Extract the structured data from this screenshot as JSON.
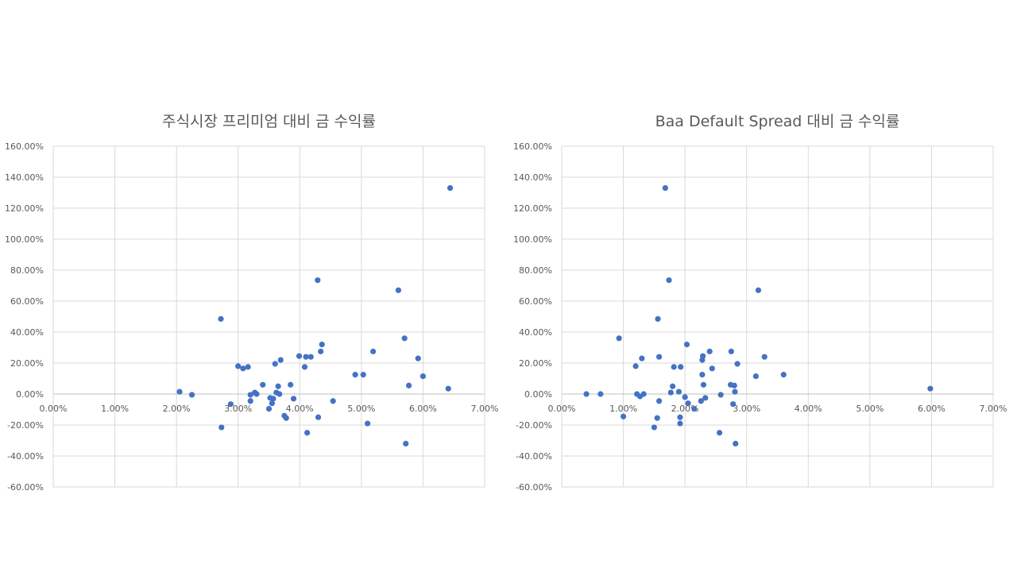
{
  "chart_data": [
    {
      "type": "scatter",
      "title": "주식시장 프리미엄 대비 금 수익률",
      "xlim": [
        0,
        0.07
      ],
      "ylim": [
        -0.6,
        1.6
      ],
      "x_ticks": [
        "0.00%",
        "1.00%",
        "2.00%",
        "3.00%",
        "4.00%",
        "5.00%",
        "6.00%",
        "7.00%"
      ],
      "y_ticks": [
        "160.00%",
        "140.00%",
        "120.00%",
        "100.00%",
        "80.00%",
        "60.00%",
        "40.00%",
        "20.00%",
        "0.00%",
        "-20.00%",
        "-40.00%",
        "-60.00%"
      ],
      "grid": true,
      "marker_color": "#4472C4",
      "points": [
        [
          0.0205,
          0.015
        ],
        [
          0.0225,
          -0.005
        ],
        [
          0.0272,
          0.485
        ],
        [
          0.0273,
          -0.215
        ],
        [
          0.0288,
          -0.065
        ],
        [
          0.03,
          0.18
        ],
        [
          0.0308,
          0.165
        ],
        [
          0.0316,
          0.175
        ],
        [
          0.032,
          -0.005
        ],
        [
          0.032,
          -0.045
        ],
        [
          0.0327,
          0.01
        ],
        [
          0.033,
          0.0
        ],
        [
          0.034,
          0.06
        ],
        [
          0.035,
          -0.095
        ],
        [
          0.0352,
          -0.025
        ],
        [
          0.0355,
          -0.06
        ],
        [
          0.0357,
          -0.03
        ],
        [
          0.036,
          0.195
        ],
        [
          0.0362,
          0.01
        ],
        [
          0.0365,
          0.05
        ],
        [
          0.0367,
          0.0
        ],
        [
          0.0369,
          0.22
        ],
        [
          0.0375,
          -0.14
        ],
        [
          0.0378,
          -0.155
        ],
        [
          0.0385,
          0.06
        ],
        [
          0.039,
          -0.03
        ],
        [
          0.0399,
          0.245
        ],
        [
          0.0408,
          0.175
        ],
        [
          0.041,
          0.24
        ],
        [
          0.0412,
          -0.25
        ],
        [
          0.0418,
          0.24
        ],
        [
          0.0429,
          0.735
        ],
        [
          0.043,
          -0.15
        ],
        [
          0.0434,
          0.275
        ],
        [
          0.0436,
          0.32
        ],
        [
          0.0454,
          -0.045
        ],
        [
          0.049,
          0.125
        ],
        [
          0.0503,
          0.125
        ],
        [
          0.051,
          -0.19
        ],
        [
          0.0519,
          0.275
        ],
        [
          0.056,
          0.67
        ],
        [
          0.057,
          0.36
        ],
        [
          0.0572,
          -0.32
        ],
        [
          0.0577,
          0.055
        ],
        [
          0.0592,
          0.23
        ],
        [
          0.06,
          0.115
        ],
        [
          0.0641,
          0.035
        ],
        [
          0.0644,
          1.33
        ]
      ]
    },
    {
      "type": "scatter",
      "title": "Baa Default Spread 대비 금 수익률",
      "xlim": [
        0,
        0.07
      ],
      "ylim": [
        -0.6,
        1.6
      ],
      "x_ticks": [
        "0.00%",
        "1.00%",
        "2.00%",
        "3.00%",
        "4.00%",
        "5.00%",
        "6.00%",
        "7.00%"
      ],
      "y_ticks": [
        "160.00%",
        "140.00%",
        "120.00%",
        "100.00%",
        "80.00%",
        "60.00%",
        "40.00%",
        "20.00%",
        "0.00%",
        "-20.00%",
        "-40.00%",
        "-60.00%"
      ],
      "grid": true,
      "marker_color": "#4472C4",
      "points": [
        [
          0.004,
          0.0
        ],
        [
          0.0063,
          0.0
        ],
        [
          0.0093,
          0.36
        ],
        [
          0.01,
          -0.145
        ],
        [
          0.012,
          0.18
        ],
        [
          0.0122,
          0.0
        ],
        [
          0.0127,
          -0.015
        ],
        [
          0.013,
          0.23
        ],
        [
          0.0133,
          0.0
        ],
        [
          0.015,
          -0.215
        ],
        [
          0.0155,
          -0.155
        ],
        [
          0.0156,
          0.485
        ],
        [
          0.0158,
          0.24
        ],
        [
          0.0158,
          -0.045
        ],
        [
          0.0168,
          1.33
        ],
        [
          0.0174,
          0.735
        ],
        [
          0.0177,
          0.01
        ],
        [
          0.018,
          0.05
        ],
        [
          0.0182,
          0.175
        ],
        [
          0.019,
          0.015
        ],
        [
          0.0192,
          -0.19
        ],
        [
          0.0192,
          -0.15
        ],
        [
          0.0193,
          0.175
        ],
        [
          0.02,
          -0.02
        ],
        [
          0.0203,
          0.32
        ],
        [
          0.0205,
          -0.06
        ],
        [
          0.0215,
          -0.095
        ],
        [
          0.0226,
          -0.045
        ],
        [
          0.0228,
          0.125
        ],
        [
          0.0228,
          0.22
        ],
        [
          0.0229,
          0.245
        ],
        [
          0.023,
          0.06
        ],
        [
          0.0233,
          -0.025
        ],
        [
          0.024,
          0.275
        ],
        [
          0.0244,
          0.165
        ],
        [
          0.0256,
          -0.25
        ],
        [
          0.0258,
          -0.005
        ],
        [
          0.0274,
          0.06
        ],
        [
          0.0275,
          0.275
        ],
        [
          0.0278,
          -0.065
        ],
        [
          0.028,
          0.055
        ],
        [
          0.0281,
          0.015
        ],
        [
          0.0282,
          -0.32
        ],
        [
          0.0285,
          0.195
        ],
        [
          0.0315,
          0.115
        ],
        [
          0.0319,
          0.67
        ],
        [
          0.0329,
          0.24
        ],
        [
          0.036,
          0.125
        ],
        [
          0.0598,
          0.035
        ]
      ]
    }
  ]
}
